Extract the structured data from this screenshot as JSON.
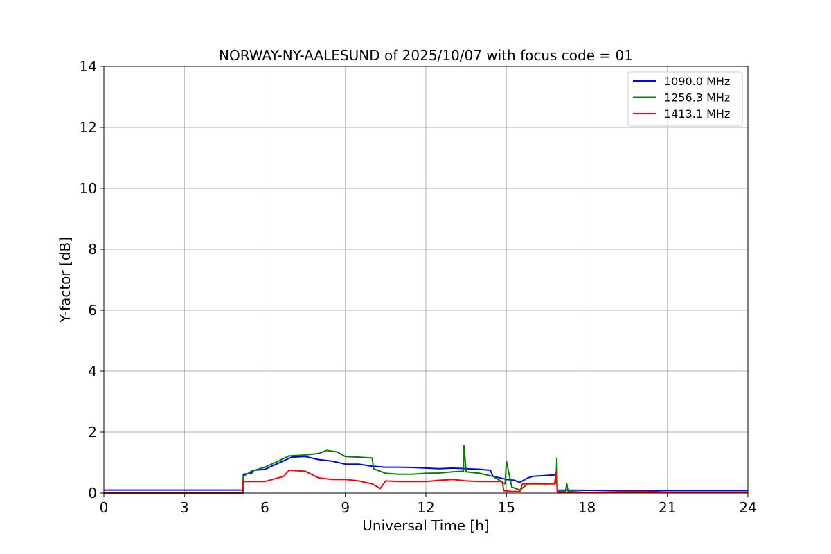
{
  "chart_data": {
    "type": "line",
    "title": "NORWAY-NY-AALESUND of 2025/10/07 with focus code = 01",
    "xlabel": "Universal Time [h]",
    "ylabel": "Y-factor [dB]",
    "xlim": [
      0,
      24
    ],
    "ylim": [
      0,
      14
    ],
    "xticks": [
      0,
      3,
      6,
      9,
      12,
      15,
      18,
      21,
      24
    ],
    "yticks": [
      0,
      2,
      4,
      6,
      8,
      10,
      12,
      14
    ],
    "xtick_labels": [
      "0",
      "3",
      "6",
      "9",
      "12",
      "15",
      "18",
      "21",
      "24"
    ],
    "ytick_labels": [
      "0",
      "2",
      "4",
      "6",
      "8",
      "10",
      "12",
      "14"
    ],
    "grid": true,
    "legend_position": "top-right",
    "series": [
      {
        "name": "1090.0 MHz",
        "color": "#0000ff",
        "x": [
          0,
          5.18,
          5.2,
          5.5,
          5.6,
          6.0,
          6.8,
          7.0,
          7.5,
          8.0,
          8.5,
          9.0,
          9.5,
          10.0,
          10.5,
          11.0,
          11.5,
          12.0,
          12.5,
          13.0,
          13.5,
          14.0,
          14.4,
          14.5,
          15.0,
          15.3,
          15.5,
          15.8,
          16.0,
          16.5,
          16.85,
          16.9,
          18,
          20,
          22,
          24
        ],
        "y": [
          0.1,
          0.1,
          0.62,
          0.65,
          0.75,
          0.78,
          1.1,
          1.18,
          1.2,
          1.1,
          1.05,
          0.95,
          0.95,
          0.88,
          0.85,
          0.85,
          0.84,
          0.82,
          0.8,
          0.82,
          0.8,
          0.78,
          0.75,
          0.55,
          0.45,
          0.42,
          0.35,
          0.5,
          0.55,
          0.58,
          0.6,
          0.1,
          0.09,
          0.08,
          0.08,
          0.08
        ]
      },
      {
        "name": "1256.3 MHz",
        "color": "#008000",
        "x": [
          5.18,
          5.2,
          5.5,
          6.0,
          6.5,
          6.9,
          7.5,
          8.0,
          8.3,
          8.7,
          9.0,
          9.5,
          10.0,
          10.05,
          10.5,
          11.0,
          11.5,
          12.0,
          12.5,
          13.0,
          13.4,
          13.42,
          13.5,
          14.0,
          14.5,
          14.95,
          15.0,
          15.2,
          15.5,
          15.8,
          16.0,
          16.5,
          16.85,
          16.88,
          16.9,
          17.2,
          17.25,
          17.3,
          18,
          24
        ],
        "y": [
          0.0,
          0.55,
          0.72,
          0.85,
          1.05,
          1.22,
          1.25,
          1.3,
          1.4,
          1.35,
          1.2,
          1.18,
          1.15,
          0.8,
          0.65,
          0.62,
          0.62,
          0.65,
          0.66,
          0.7,
          0.72,
          1.55,
          0.7,
          0.65,
          0.55,
          0.3,
          1.05,
          0.2,
          0.1,
          0.3,
          0.3,
          0.3,
          0.32,
          1.15,
          0.05,
          0.05,
          0.3,
          0.05,
          0.02,
          0.02
        ]
      },
      {
        "name": "1413.1 MHz",
        "color": "#ff0000",
        "x": [
          0,
          5.18,
          5.2,
          6.0,
          6.7,
          6.9,
          7.5,
          8.0,
          8.5,
          9.0,
          9.5,
          10.0,
          10.3,
          10.5,
          11.0,
          11.5,
          12.0,
          12.5,
          13.0,
          13.5,
          14.0,
          14.5,
          14.85,
          14.9,
          15.2,
          15.5,
          15.6,
          16.0,
          16.5,
          16.8,
          16.85,
          16.9,
          18,
          20,
          21,
          24
        ],
        "y": [
          0.0,
          0.0,
          0.38,
          0.38,
          0.55,
          0.75,
          0.72,
          0.5,
          0.45,
          0.45,
          0.4,
          0.3,
          0.15,
          0.4,
          0.38,
          0.38,
          0.38,
          0.42,
          0.45,
          0.4,
          0.38,
          0.38,
          0.38,
          0.08,
          0.05,
          0.05,
          0.3,
          0.32,
          0.3,
          0.3,
          0.7,
          0.02,
          0.02,
          0.05,
          0.02,
          0.02
        ]
      }
    ]
  }
}
